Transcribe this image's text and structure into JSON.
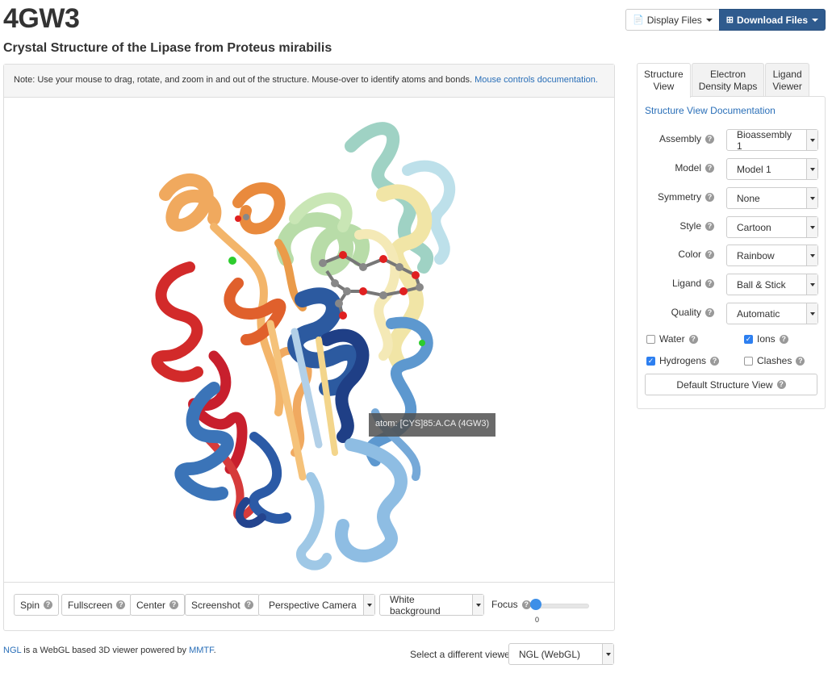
{
  "entry": {
    "id": "4GW3",
    "title": "Crystal Structure of the Lipase from Proteus mirabilis"
  },
  "header_buttons": {
    "display_files": "Display Files",
    "download_files": "Download Files"
  },
  "viewer": {
    "note": "Note: Use your mouse to drag, rotate, and zoom in and out of the structure. Mouse-over to identify atoms and bonds.",
    "note_link": "Mouse controls documentation.",
    "tooltip": "atom: [CYS]85:A.CA (4GW3)",
    "controls": {
      "spin": "Spin",
      "fullscreen": "Fullscreen",
      "center": "Center",
      "screenshot": "Screenshot",
      "camera": "Perspective Camera",
      "background": "White background",
      "focus_label": "Focus",
      "focus_value": "0"
    }
  },
  "tabs": [
    {
      "label_line1": "Structure",
      "label_line2": "View",
      "active": true
    },
    {
      "label_line1": "Electron",
      "label_line2": "Density Maps",
      "active": false
    },
    {
      "label_line1": "Ligand",
      "label_line2": "Viewer",
      "active": false
    }
  ],
  "structure_view": {
    "doc_link": "Structure View Documentation",
    "fields": [
      {
        "label": "Assembly",
        "value": "Bioassembly 1"
      },
      {
        "label": "Model",
        "value": "Model 1"
      },
      {
        "label": "Symmetry",
        "value": "None"
      },
      {
        "label": "Style",
        "value": "Cartoon"
      },
      {
        "label": "Color",
        "value": "Rainbow"
      },
      {
        "label": "Ligand",
        "value": "Ball & Stick"
      },
      {
        "label": "Quality",
        "value": "Automatic"
      }
    ],
    "checks": {
      "water": {
        "label": "Water",
        "checked": false
      },
      "ions": {
        "label": "Ions",
        "checked": true
      },
      "hydrogens": {
        "label": "Hydrogens",
        "checked": true
      },
      "clashes": {
        "label": "Clashes",
        "checked": false
      }
    },
    "default_button": "Default Structure View"
  },
  "footer": {
    "ngl_link": "NGL",
    "text_mid": " is a WebGL based 3D viewer powered by ",
    "mmtf_link": "MMTF",
    "text_end": ".",
    "select_label": "Select a different viewer",
    "select_value": "NGL (WebGL)"
  }
}
